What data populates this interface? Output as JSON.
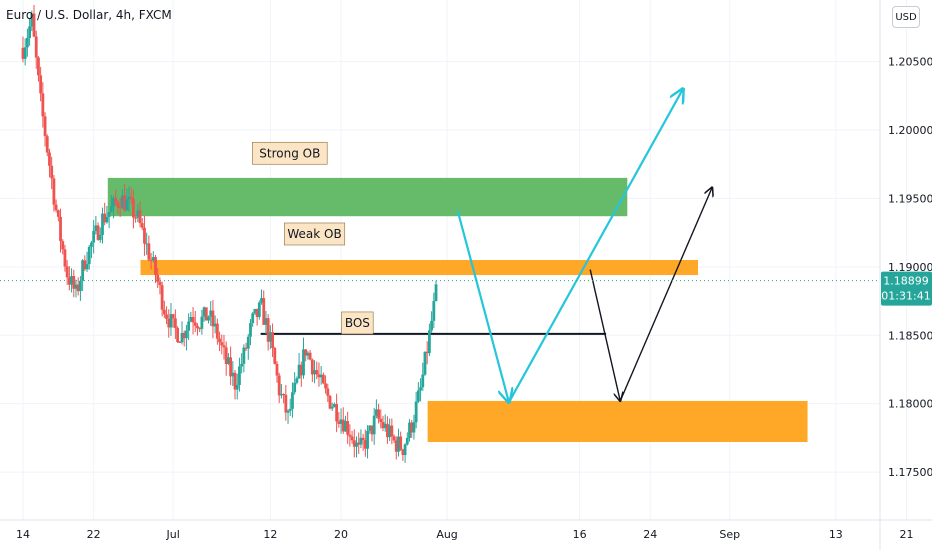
{
  "header": {
    "symbol_title": "Euro / U.S. Dollar, 4h, FXCM",
    "currency_button": "USD"
  },
  "price_badge": {
    "price": "1.18899",
    "countdown": "01:31:41",
    "color": "#26a69a"
  },
  "colors": {
    "up_candle": "#26a69a",
    "down_candle": "#ef5350",
    "strong_ob": "#66bb6a",
    "weak_ob": "#ffa726",
    "demand_zone": "#ffa726",
    "arrow_cyan": "#26c6da",
    "arrow_dark": "#131722",
    "grid": "#f0f3fa",
    "axis_text": "#131722"
  },
  "chart_data": {
    "type": "candlestick",
    "instrument": "Euro / U.S. Dollar",
    "timeframe": "4h",
    "source": "FXCM",
    "x_tick_labels": [
      "14",
      "22",
      "Jul",
      "12",
      "20",
      "Aug",
      "16",
      "24",
      "Sep",
      "13",
      "21"
    ],
    "y_tick_labels": [
      "1.20500",
      "1.20000",
      "1.19500",
      "1.19000",
      "1.18500",
      "1.18000",
      "1.17500"
    ],
    "ylim": [
      1.1715,
      1.2095
    ],
    "xlim_days": [
      -2.6,
      97
    ],
    "x_tick_days": [
      0,
      8,
      17,
      28,
      36,
      48,
      63,
      71,
      80,
      92,
      100
    ],
    "grid": true,
    "last_price": 1.18899,
    "candles_anchor_closes": [
      [
        0,
        1.206
      ],
      [
        1,
        1.208
      ],
      [
        2,
        1.202
      ],
      [
        3,
        1.1975
      ],
      [
        4,
        1.193
      ],
      [
        5,
        1.1895
      ],
      [
        6,
        1.188
      ],
      [
        7,
        1.1905
      ],
      [
        8,
        1.192
      ],
      [
        9,
        1.1935
      ],
      [
        10,
        1.1942
      ],
      [
        11,
        1.195
      ],
      [
        12,
        1.1945
      ],
      [
        13,
        1.1935
      ],
      [
        14,
        1.1915
      ],
      [
        15,
        1.1895
      ],
      [
        16,
        1.187
      ],
      [
        17,
        1.1855
      ],
      [
        18,
        1.185
      ],
      [
        19,
        1.1865
      ],
      [
        20,
        1.186
      ],
      [
        21,
        1.1865
      ],
      [
        22,
        1.185
      ],
      [
        23,
        1.183
      ],
      [
        24,
        1.1815
      ],
      [
        25,
        1.1835
      ],
      [
        26,
        1.186
      ],
      [
        27,
        1.187
      ],
      [
        28,
        1.1845
      ],
      [
        29,
        1.181
      ],
      [
        30,
        1.179
      ],
      [
        31,
        1.1815
      ],
      [
        32,
        1.184
      ],
      [
        33,
        1.1825
      ],
      [
        34,
        1.181
      ],
      [
        35,
        1.18
      ],
      [
        36,
        1.179
      ],
      [
        37,
        1.178
      ],
      [
        38,
        1.1765
      ],
      [
        39,
        1.1775
      ],
      [
        40,
        1.179
      ],
      [
        41,
        1.1782
      ],
      [
        42,
        1.1772
      ],
      [
        43,
        1.1768
      ],
      [
        44,
        1.1785
      ],
      [
        45,
        1.181
      ],
      [
        46,
        1.185
      ],
      [
        47,
        1.189
      ]
    ],
    "zones": [
      {
        "label": "Strong OB",
        "price_top": 1.1965,
        "price_bottom": 1.1937,
        "day_start": 9.6,
        "day_end": 68.4
      },
      {
        "label": "Weak OB",
        "price_top": 1.1905,
        "price_bottom": 1.1894,
        "day_start": 13.3,
        "day_end": 76.4
      },
      {
        "label": "",
        "price_top": 1.1802,
        "price_bottom": 1.1772,
        "day_start": 45.8,
        "day_end": 88.8
      }
    ],
    "annotations": [
      {
        "text": "BOS",
        "price": 1.1851,
        "day_start": 26.9,
        "day_end": 66.0
      }
    ],
    "projection_paths": [
      {
        "color": "cyan",
        "points": [
          [
            49.2,
            1.1941
          ],
          [
            55.0,
            1.1801
          ],
          [
            74.7,
            1.203
          ]
        ]
      },
      {
        "color": "dark",
        "points": [
          [
            64.2,
            1.1898
          ],
          [
            67.6,
            1.1802
          ],
          [
            78.0,
            1.1958
          ]
        ]
      }
    ]
  }
}
